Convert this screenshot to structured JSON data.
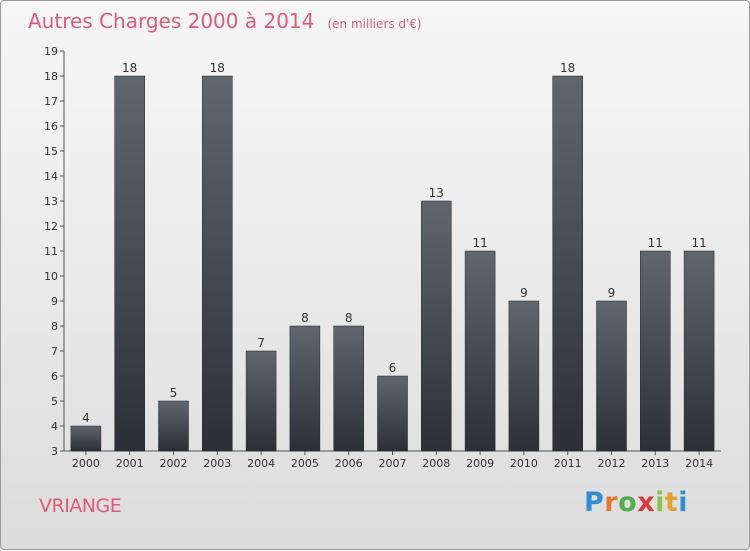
{
  "chart_data": {
    "type": "bar",
    "title": "Autres Charges 2000 à 2014",
    "subtitle": "(en milliers d'€)",
    "categories": [
      "2000",
      "2001",
      "2002",
      "2003",
      "2004",
      "2005",
      "2006",
      "2007",
      "2008",
      "2009",
      "2010",
      "2011",
      "2012",
      "2013",
      "2014"
    ],
    "values": [
      4,
      18,
      5,
      18,
      7,
      8,
      8,
      6,
      13,
      11,
      9,
      18,
      9,
      11,
      11
    ],
    "ylim": [
      3,
      19
    ],
    "yticks": [
      3,
      4,
      5,
      6,
      7,
      8,
      9,
      10,
      11,
      12,
      13,
      14,
      15,
      16,
      17,
      18,
      19
    ],
    "grid": false,
    "bar_color": "#3a4048"
  },
  "place": "VRIANGE",
  "logo": {
    "letters": [
      "P",
      "r",
      "o",
      "x",
      "i",
      "t",
      "i"
    ],
    "colors": [
      "#2f8fd6",
      "#e8752b",
      "#4caf50",
      "#d63b3b",
      "#8bc34a",
      "#e8a02b",
      "#2f8fd6"
    ]
  }
}
